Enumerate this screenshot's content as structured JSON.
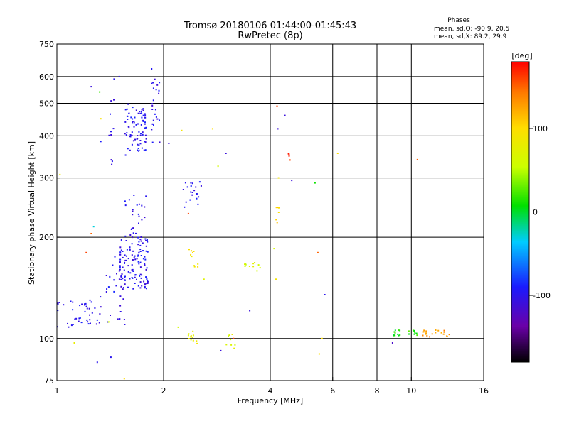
{
  "chart_data": {
    "type": "scatter",
    "title": "Tromsø 20180106 01:44:00-01:45:43",
    "subtitle": "RwPretec (8p)",
    "legend_title": "Phases",
    "legend_lines": [
      "mean, sd,O: -90.9, 20.5",
      "mean, sd,X:  89.2, 29.9"
    ],
    "xlabel": "Frequency [MHz]",
    "ylabel": "Stationary phase Virtual Height [km]",
    "xscale": "log",
    "yscale": "log",
    "xlim": [
      1,
      16
    ],
    "ylim": [
      75,
      750
    ],
    "xticks": [
      1,
      2,
      4,
      6,
      8,
      10,
      16
    ],
    "xtick_labels": [
      "1",
      "2",
      "4",
      "6",
      "8",
      "10",
      "16"
    ],
    "yticks": [
      75,
      100,
      200,
      300,
      400,
      500,
      600,
      750
    ],
    "ytick_labels": [
      "75",
      "100",
      "200",
      "300",
      "400",
      "500",
      "600",
      "750"
    ],
    "xgrid": [
      2,
      4,
      6,
      8,
      10
    ],
    "ygrid": [
      100,
      200,
      300,
      400,
      500,
      600
    ],
    "colorbar": {
      "label": "[deg]",
      "range": [
        -180,
        180
      ],
      "ticks": [
        100,
        0,
        -100
      ],
      "tick_labels": [
        "100",
        "0",
        "-100"
      ]
    },
    "clusters": [
      {
        "x": [
          1.0,
          1.3
        ],
        "y": [
          108,
          130
        ],
        "n": 40,
        "phase": -100,
        "s": 1
      },
      {
        "x": [
          1.3,
          1.6
        ],
        "y": [
          110,
          175
        ],
        "n": 30,
        "phase": -100,
        "s": 2
      },
      {
        "x": [
          1.5,
          1.82
        ],
        "y": [
          140,
          200
        ],
        "n": 120,
        "phase": -100,
        "s": 3
      },
      {
        "x": [
          1.55,
          1.8
        ],
        "y": [
          200,
          270
        ],
        "n": 25,
        "phase": -100,
        "s": 4
      },
      {
        "x": [
          1.55,
          1.8
        ],
        "y": [
          350,
          500
        ],
        "n": 80,
        "phase": -100,
        "s": 5
      },
      {
        "x": [
          1.85,
          1.95
        ],
        "y": [
          380,
          640
        ],
        "n": 25,
        "phase": -100,
        "s": 6
      },
      {
        "x": [
          1.4,
          1.45
        ],
        "y": [
          310,
          520
        ],
        "n": 10,
        "phase": -100,
        "s": 7
      },
      {
        "x": [
          2.25,
          2.6
        ],
        "y": [
          245,
          295
        ],
        "n": 20,
        "phase": -100,
        "s": 8
      },
      {
        "x": [
          2.35,
          2.5
        ],
        "y": [
          160,
          185
        ],
        "n": 10,
        "phase": 90,
        "s": 9
      },
      {
        "x": [
          2.35,
          2.5
        ],
        "y": [
          95,
          105
        ],
        "n": 12,
        "phase": 80,
        "s": 10
      },
      {
        "x": [
          3.0,
          3.2
        ],
        "y": [
          92,
          105
        ],
        "n": 8,
        "phase": 70,
        "s": 11
      },
      {
        "x": [
          3.3,
          3.8
        ],
        "y": [
          158,
          168
        ],
        "n": 12,
        "phase": 65,
        "s": 12
      },
      {
        "x": [
          4.15,
          4.25
        ],
        "y": [
          210,
          250
        ],
        "n": 6,
        "phase": 110,
        "s": 13
      },
      {
        "x": [
          4.5,
          4.55
        ],
        "y": [
          335,
          355
        ],
        "n": 4,
        "phase": 165,
        "s": 14
      },
      {
        "x": [
          8.9,
          9.3
        ],
        "y": [
          102,
          106
        ],
        "n": 12,
        "phase": 10,
        "s": 15
      },
      {
        "x": [
          9.8,
          10.4
        ],
        "y": [
          102,
          106
        ],
        "n": 10,
        "phase": 15,
        "s": 16
      },
      {
        "x": [
          10.6,
          12.8
        ],
        "y": [
          101,
          106
        ],
        "n": 20,
        "phase": 130,
        "s": 17
      }
    ],
    "points": [
      {
        "x": 1.25,
        "y": 560,
        "phase": -110
      },
      {
        "x": 1.32,
        "y": 540,
        "phase": 20
      },
      {
        "x": 1.45,
        "y": 590,
        "phase": -100
      },
      {
        "x": 1.5,
        "y": 600,
        "phase": -100
      },
      {
        "x": 1.33,
        "y": 450,
        "phase": 95
      },
      {
        "x": 1.33,
        "y": 385,
        "phase": -90
      },
      {
        "x": 1.02,
        "y": 307,
        "phase": 80
      },
      {
        "x": 1.27,
        "y": 215,
        "phase": -30
      },
      {
        "x": 1.25,
        "y": 205,
        "phase": 150
      },
      {
        "x": 1.21,
        "y": 180,
        "phase": 160
      },
      {
        "x": 2.07,
        "y": 380,
        "phase": -110
      },
      {
        "x": 2.25,
        "y": 415,
        "phase": 90
      },
      {
        "x": 2.35,
        "y": 235,
        "phase": 160
      },
      {
        "x": 2.85,
        "y": 325,
        "phase": 60
      },
      {
        "x": 2.75,
        "y": 420,
        "phase": 100
      },
      {
        "x": 3.0,
        "y": 355,
        "phase": -110
      },
      {
        "x": 4.18,
        "y": 490,
        "phase": 160
      },
      {
        "x": 4.2,
        "y": 420,
        "phase": -110
      },
      {
        "x": 4.4,
        "y": 460,
        "phase": -110
      },
      {
        "x": 4.22,
        "y": 300,
        "phase": 90
      },
      {
        "x": 4.6,
        "y": 295,
        "phase": -110
      },
      {
        "x": 5.35,
        "y": 290,
        "phase": 10
      },
      {
        "x": 5.45,
        "y": 180,
        "phase": 150
      },
      {
        "x": 5.7,
        "y": 135,
        "phase": -100
      },
      {
        "x": 5.6,
        "y": 100,
        "phase": 100
      },
      {
        "x": 5.5,
        "y": 90,
        "phase": 100
      },
      {
        "x": 4.1,
        "y": 185,
        "phase": 60
      },
      {
        "x": 4.15,
        "y": 150,
        "phase": 90
      },
      {
        "x": 3.5,
        "y": 121,
        "phase": -110
      },
      {
        "x": 3.15,
        "y": 100,
        "phase": 160
      },
      {
        "x": 2.9,
        "y": 92,
        "phase": -110
      },
      {
        "x": 2.2,
        "y": 108,
        "phase": 60
      },
      {
        "x": 2.6,
        "y": 150,
        "phase": 70
      },
      {
        "x": 8.85,
        "y": 97,
        "phase": -120
      },
      {
        "x": 6.2,
        "y": 355,
        "phase": 100
      },
      {
        "x": 10.4,
        "y": 340,
        "phase": 150
      },
      {
        "x": 1.55,
        "y": 76,
        "phase": 100
      },
      {
        "x": 1.12,
        "y": 97,
        "phase": 80
      },
      {
        "x": 1.3,
        "y": 85,
        "phase": -100
      },
      {
        "x": 1.42,
        "y": 88,
        "phase": -100
      },
      {
        "x": 1.4,
        "y": 112,
        "phase": 60
      }
    ]
  }
}
